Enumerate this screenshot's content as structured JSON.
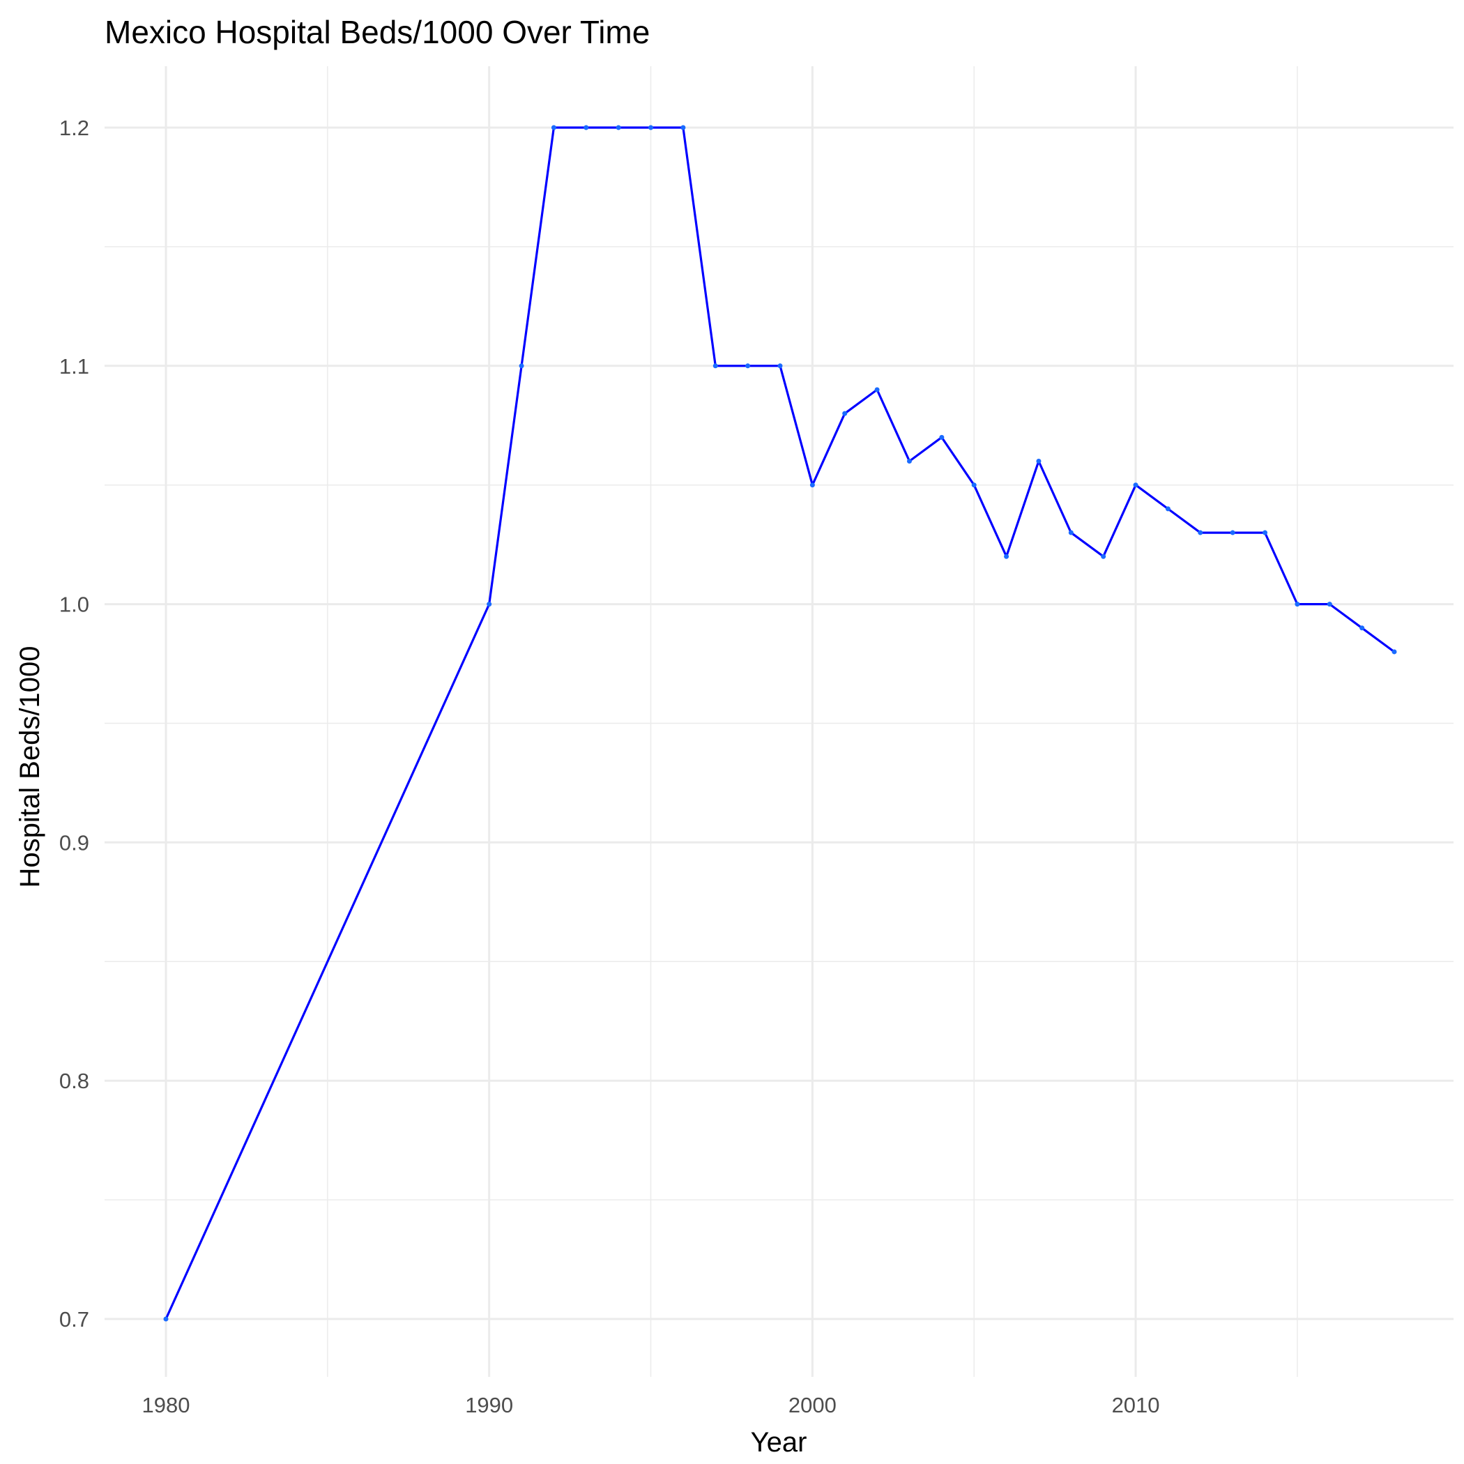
{
  "chart_data": {
    "type": "line",
    "title": "Mexico Hospital Beds/1000 Over Time",
    "xlabel": "Year",
    "ylabel": "Hospital Beds/1000",
    "x_ticks": [
      "1980",
      "1990",
      "2000",
      "2010"
    ],
    "y_ticks": [
      "0.7",
      "0.8",
      "0.9",
      "1.0",
      "1.1",
      "1.2"
    ],
    "xlim": [
      1980,
      2018
    ],
    "ylim": [
      0.7,
      1.2
    ],
    "grid": true,
    "colors": {
      "line": "#0000ff",
      "point": "#1a6bff"
    },
    "series": [
      {
        "x": [
          1980,
          1990,
          1991,
          1992,
          1993,
          1994,
          1995,
          1996,
          1997,
          1998,
          1999,
          2000,
          2001,
          2002,
          2003,
          2004,
          2005,
          2006,
          2007,
          2008,
          2009,
          2010,
          2011,
          2012,
          2013,
          2014,
          2015,
          2016,
          2017,
          2018
        ],
        "values": [
          0.7,
          1.0,
          1.1,
          1.2,
          1.2,
          1.2,
          1.2,
          1.2,
          1.1,
          1.1,
          1.1,
          1.05,
          1.08,
          1.09,
          1.06,
          1.07,
          1.05,
          1.02,
          1.06,
          1.03,
          1.02,
          1.05,
          1.04,
          1.03,
          1.03,
          1.03,
          1.0,
          1.0,
          0.99,
          0.98
        ]
      }
    ]
  }
}
